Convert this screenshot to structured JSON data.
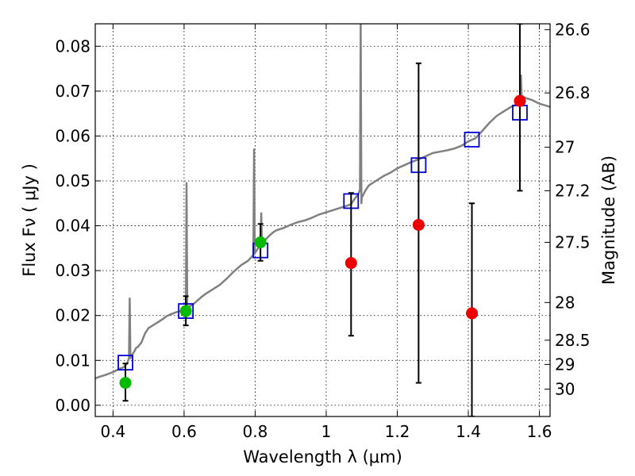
{
  "chart_data": {
    "type": "scatter",
    "xlabel": "Wavelength  λ (μm)",
    "ylabel": "Flux  Fν  ( μJy )",
    "y2label": "Magnitude (AB)",
    "xlim": [
      0.35,
      1.63
    ],
    "ylim": [
      -0.0025,
      0.085
    ],
    "grid": true,
    "x_ticks": [
      0.4,
      0.6,
      0.8,
      1.0,
      1.2,
      1.4,
      1.6
    ],
    "x_tick_labels": [
      "0.4",
      "0.6",
      "0.8",
      "1",
      "1.2",
      "1.4",
      "1.6"
    ],
    "y_ticks": [
      0.0,
      0.01,
      0.02,
      0.03,
      0.04,
      0.05,
      0.06,
      0.07,
      0.08
    ],
    "y_tick_labels": [
      "0.00",
      "0.01",
      "0.02",
      "0.03",
      "0.04",
      "0.05",
      "0.06",
      "0.07",
      "0.08"
    ],
    "y2_tick_labels": [
      "26.6",
      "26.8",
      "27",
      "27.2",
      "27.5",
      "28",
      "28.5",
      "29",
      "30"
    ],
    "y2_tick_flux": [
      0.0837,
      0.0696,
      0.0575,
      0.0478,
      0.0363,
      0.0229,
      0.0145,
      0.0091,
      0.0036
    ],
    "colors": {
      "model": "#808080",
      "detection": "#00bb00",
      "upper_limit": "#ee0000",
      "model_photometry": "#0000dd",
      "errorbar": "#000000"
    },
    "series": [
      {
        "style": "line",
        "color": "#808080",
        "x": [
          0.35,
          0.36,
          0.38,
          0.4,
          0.41,
          0.42,
          0.43,
          0.44,
          0.445,
          0.447,
          0.449,
          0.45,
          0.46,
          0.465,
          0.47,
          0.48,
          0.485,
          0.49,
          0.5,
          0.52,
          0.54,
          0.55,
          0.56,
          0.58,
          0.6,
          0.605,
          0.607,
          0.609,
          0.612,
          0.62,
          0.63,
          0.64,
          0.65,
          0.66,
          0.68,
          0.7,
          0.72,
          0.74,
          0.76,
          0.78,
          0.795,
          0.797,
          0.799,
          0.8,
          0.81,
          0.815,
          0.817,
          0.819,
          0.82,
          0.83,
          0.84,
          0.85,
          0.86,
          0.88,
          0.9,
          0.92,
          0.94,
          0.96,
          0.98,
          1.0,
          1.02,
          1.04,
          1.06,
          1.07,
          1.08,
          1.09,
          1.095,
          1.097,
          1.099,
          1.1,
          1.11,
          1.12,
          1.14,
          1.16,
          1.18,
          1.2,
          1.22,
          1.24,
          1.26,
          1.28,
          1.3,
          1.32,
          1.34,
          1.36,
          1.38,
          1.4,
          1.42,
          1.44,
          1.46,
          1.48,
          1.5,
          1.52,
          1.54,
          1.545,
          1.548,
          1.55,
          1.56,
          1.58,
          1.6,
          1.63
        ],
        "y": [
          0.006,
          0.0063,
          0.0068,
          0.0074,
          0.0078,
          0.0082,
          0.0085,
          0.0094,
          0.0105,
          0.0238,
          0.0105,
          0.0108,
          0.012,
          0.0128,
          0.013,
          0.014,
          0.015,
          0.016,
          0.0172,
          0.0182,
          0.0192,
          0.0198,
          0.0202,
          0.0208,
          0.0212,
          0.0215,
          0.0495,
          0.0218,
          0.022,
          0.0222,
          0.0228,
          0.0235,
          0.0242,
          0.0248,
          0.0258,
          0.0268,
          0.0282,
          0.0298,
          0.0312,
          0.0322,
          0.0335,
          0.057,
          0.0338,
          0.034,
          0.0352,
          0.0358,
          0.0428,
          0.036,
          0.0362,
          0.037,
          0.0378,
          0.0385,
          0.039,
          0.0395,
          0.0402,
          0.0408,
          0.0412,
          0.0418,
          0.0425,
          0.043,
          0.0435,
          0.044,
          0.0445,
          0.0448,
          0.046,
          0.047,
          0.048,
          0.085,
          0.045,
          0.0462,
          0.0478,
          0.049,
          0.05,
          0.051,
          0.0518,
          0.0528,
          0.0535,
          0.0542,
          0.0548,
          0.0555,
          0.0562,
          0.0565,
          0.0568,
          0.0572,
          0.0578,
          0.0588,
          0.0595,
          0.0612,
          0.063,
          0.0645,
          0.0655,
          0.0665,
          0.0672,
          0.0678,
          0.0735,
          0.069,
          0.0685,
          0.068,
          0.0672,
          0.0665
        ]
      },
      {
        "style": "square",
        "color": "#0000dd",
        "x": [
          0.435,
          0.605,
          0.815,
          1.07,
          1.26,
          1.41,
          1.545
        ],
        "y": [
          0.0095,
          0.021,
          0.0345,
          0.0455,
          0.0535,
          0.0592,
          0.0652
        ]
      },
      {
        "style": "point",
        "color": "#00bb00",
        "x": [
          0.435,
          0.605,
          0.815
        ],
        "y": [
          0.005,
          0.021,
          0.0363
        ],
        "yerr_low": [
          0.001,
          0.0178,
          0.0322
        ],
        "yerr_high": [
          0.0093,
          0.0243,
          0.0404
        ]
      },
      {
        "style": "point",
        "color": "#ee0000",
        "x": [
          1.07,
          1.26,
          1.41,
          1.545
        ],
        "y": [
          0.0317,
          0.0402,
          0.0205,
          0.0678
        ],
        "yerr_low": [
          0.0155,
          0.005,
          -0.0025,
          0.0478
        ],
        "yerr_high": [
          0.0473,
          0.0762,
          0.045,
          0.085
        ]
      }
    ]
  }
}
